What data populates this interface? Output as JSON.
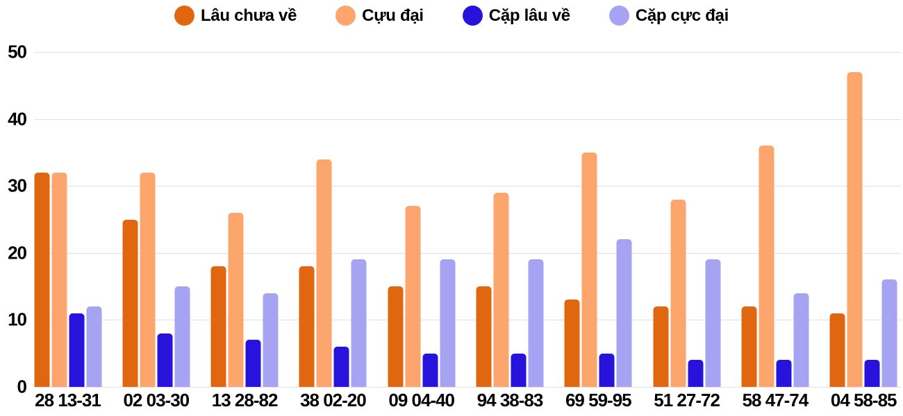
{
  "chart_data": {
    "type": "bar",
    "title": "",
    "xlabel": "",
    "ylabel": "",
    "categories": [
      "28 13-31",
      "02 03-30",
      "13 28-82",
      "38 02-20",
      "09 04-40",
      "94 38-83",
      "69 59-95",
      "51 27-72",
      "58 47-74",
      "04 58-85"
    ],
    "series": [
      {
        "name": "Lâu chưa về",
        "color": "#E0670F",
        "values": [
          32,
          25,
          18,
          18,
          15,
          15,
          13,
          12,
          12,
          11
        ]
      },
      {
        "name": "Cựu đại",
        "color": "#FCA56C",
        "values": [
          32,
          32,
          26,
          34,
          27,
          29,
          35,
          28,
          36,
          47
        ]
      },
      {
        "name": "Cặp lâu về",
        "color": "#2713DB",
        "values": [
          11,
          8,
          7,
          6,
          5,
          5,
          5,
          4,
          4,
          4
        ]
      },
      {
        "name": "Cặp cực đại",
        "color": "#A6A3F2",
        "values": [
          12,
          15,
          14,
          19,
          19,
          19,
          22,
          19,
          14,
          16
        ]
      }
    ],
    "ylim": [
      0,
      50
    ],
    "yticks": [
      0,
      10,
      20,
      30,
      40,
      50
    ],
    "grid": true,
    "legend_position": "top"
  },
  "colors": {
    "grid": "#E0E0E0",
    "text": "#000000",
    "background": "#FFFFFF"
  }
}
